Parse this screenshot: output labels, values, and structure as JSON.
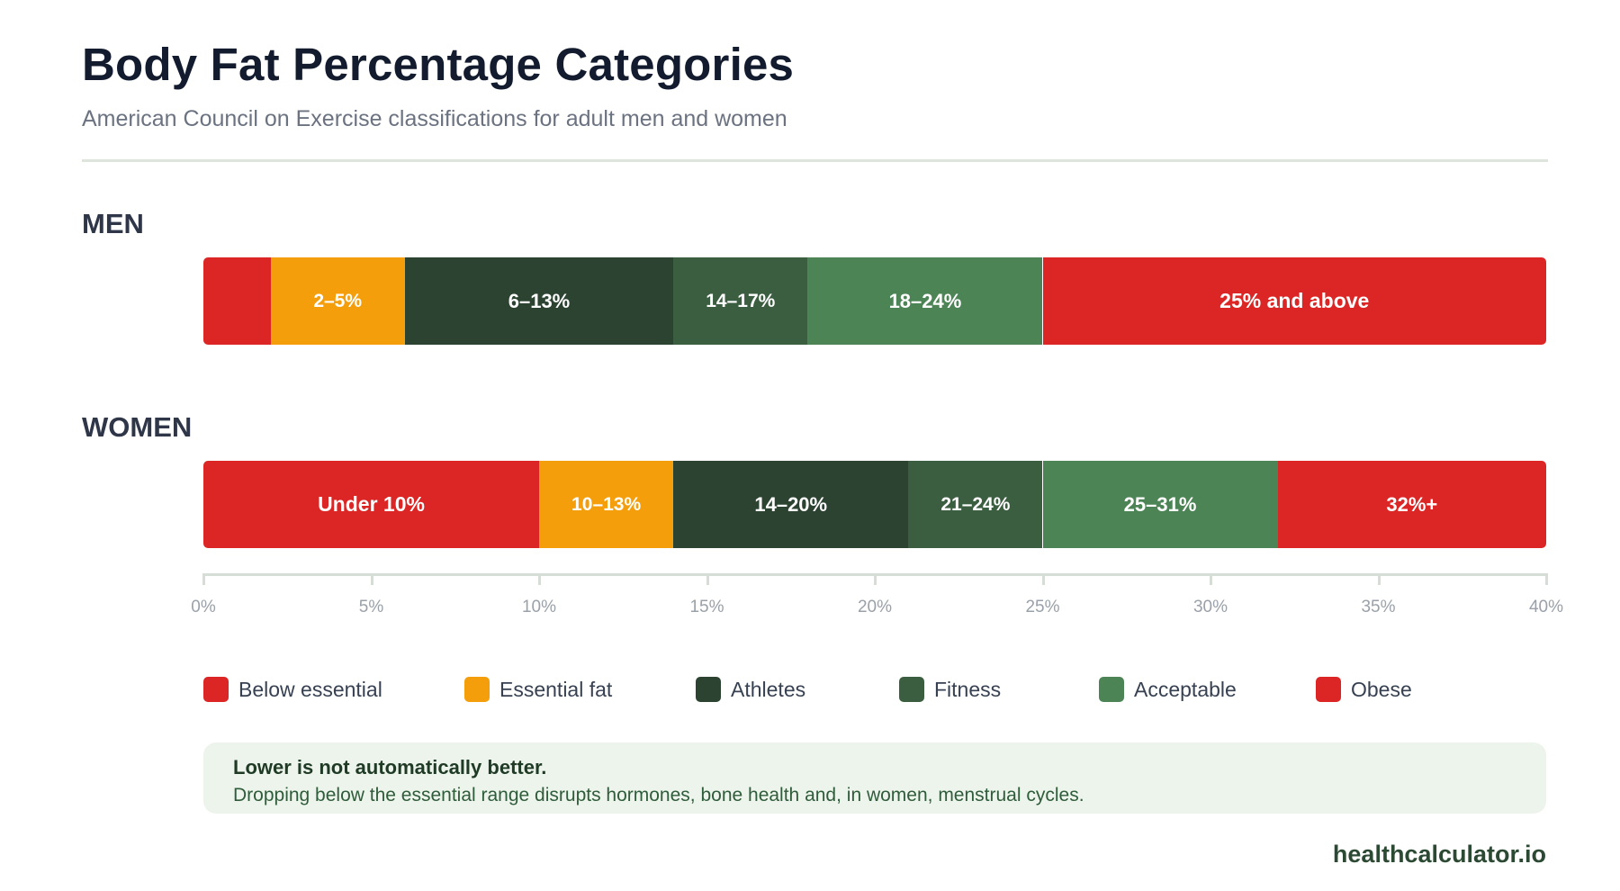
{
  "title": "Body Fat Percentage Categories",
  "subtitle": "American Council on Exercise classifications for adult men and women",
  "brand": "healthcalculator.io",
  "note": {
    "title": "Lower is not automatically better.",
    "body": "Dropping below the essential range disrupts hormones, bone health and, in women, menstrual cycles."
  },
  "chart_data": {
    "type": "bar",
    "orientation": "horizontal-stacked-ranges",
    "xlim": [
      0,
      40
    ],
    "x_ticks": [
      "0%",
      "5%",
      "10%",
      "15%",
      "20%",
      "25%",
      "30%",
      "35%",
      "40%"
    ],
    "legend_position": "bottom",
    "legend": [
      {
        "name": "Below essential",
        "color": "#dc2626"
      },
      {
        "name": "Essential fat",
        "color": "#f59e0b"
      },
      {
        "name": "Athletes",
        "color": "#2c4331"
      },
      {
        "name": "Fitness",
        "color": "#3b5e41"
      },
      {
        "name": "Acceptable",
        "color": "#4d8456"
      },
      {
        "name": "Obese",
        "color": "#dc2626"
      }
    ],
    "groups": [
      {
        "name": "MEN",
        "segments": [
          {
            "category": "Below essential",
            "start": 0,
            "end": 2,
            "label": ""
          },
          {
            "category": "Essential fat",
            "start": 2,
            "end": 6,
            "label": "2–5%"
          },
          {
            "category": "Athletes",
            "start": 6,
            "end": 14,
            "label": "6–13%"
          },
          {
            "category": "Fitness",
            "start": 14,
            "end": 18,
            "label": "14–17%"
          },
          {
            "category": "Acceptable",
            "start": 18,
            "end": 25,
            "label": "18–24%"
          },
          {
            "category": "Obese",
            "start": 25,
            "end": 40,
            "label": "25% and above"
          }
        ]
      },
      {
        "name": "WOMEN",
        "segments": [
          {
            "category": "Below essential",
            "start": 0,
            "end": 10,
            "label": "Under 10%"
          },
          {
            "category": "Essential fat",
            "start": 10,
            "end": 14,
            "label": "10–13%"
          },
          {
            "category": "Athletes",
            "start": 14,
            "end": 21,
            "label": "14–20%"
          },
          {
            "category": "Fitness",
            "start": 21,
            "end": 25,
            "label": "21–24%"
          },
          {
            "category": "Acceptable",
            "start": 25,
            "end": 32,
            "label": "25–31%"
          },
          {
            "category": "Obese",
            "start": 32,
            "end": 40,
            "label": "32%+"
          }
        ]
      }
    ]
  }
}
